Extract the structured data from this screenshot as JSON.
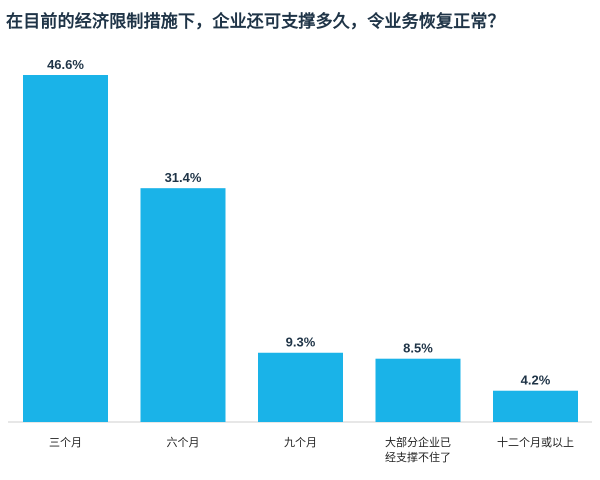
{
  "chart_data": {
    "type": "bar",
    "title": "在目前的经济限制措施下，企业还可支撑多久，令业务恢复正常？",
    "categories": [
      "三个月",
      "六个月",
      "九个月",
      "大部分企业已\n经支撑不住了",
      "十二个月或以上"
    ],
    "values": [
      46.6,
      31.4,
      9.3,
      8.5,
      4.2
    ],
    "value_labels": [
      "46.6%",
      "31.4%",
      "9.3%",
      "8.5%",
      "4.2%"
    ],
    "xlabel": "",
    "ylabel": "",
    "ylim": [
      0,
      46.6
    ],
    "grid": false,
    "legend": "none",
    "colors": {
      "bar": "#1ab3e8",
      "text": "#1f3447"
    }
  }
}
